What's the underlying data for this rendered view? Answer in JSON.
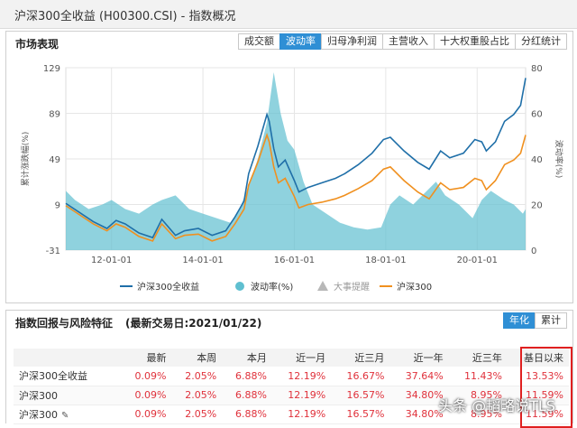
{
  "page": {
    "title": "沪深300全收益 (H00300.CSI) - 指数概况"
  },
  "market": {
    "title": "市场表现",
    "tabs": [
      "成交额",
      "波动率",
      "归母净利润",
      "主营收入",
      "十大权重股占比",
      "分红统计"
    ],
    "active_tab": 1
  },
  "chart_data": {
    "type": "line",
    "xlabel": "",
    "ylabel": "累计涨跌幅(%)",
    "y2label": "波动率(%)",
    "ylim": [
      -31,
      129
    ],
    "yticks": [
      -31,
      9,
      49,
      89,
      129
    ],
    "y2lim": [
      0,
      80
    ],
    "y2ticks": [
      0,
      20,
      40,
      60,
      80
    ],
    "xlim": [
      2011.0,
      2021.06
    ],
    "xticks": [
      {
        "value": 2012.0,
        "label": "12-01-01"
      },
      {
        "value": 2014.0,
        "label": "14-01-01"
      },
      {
        "value": 2016.0,
        "label": "16-01-01"
      },
      {
        "value": 2018.0,
        "label": "18-01-01"
      },
      {
        "value": 2020.0,
        "label": "20-01-01"
      }
    ],
    "grid": true,
    "legend": "bottom",
    "series": [
      {
        "name": "沪深300全收益",
        "kind": "line",
        "axis": "left",
        "color": "#1f6fa8",
        "x": [
          2011.0,
          2011.3,
          2011.6,
          2011.9,
          2012.1,
          2012.3,
          2012.6,
          2012.9,
          2013.1,
          2013.4,
          2013.6,
          2013.9,
          2014.2,
          2014.5,
          2014.7,
          2014.9,
          2015.0,
          2015.2,
          2015.4,
          2015.45,
          2015.55,
          2015.65,
          2015.8,
          2016.0,
          2016.1,
          2016.3,
          2016.6,
          2016.9,
          2017.1,
          2017.4,
          2017.7,
          2017.95,
          2018.1,
          2018.4,
          2018.7,
          2018.95,
          2019.2,
          2019.4,
          2019.7,
          2019.95,
          2020.1,
          2020.2,
          2020.4,
          2020.6,
          2020.8,
          2020.95,
          2021.06
        ],
        "y": [
          10,
          2,
          -6,
          -12,
          -5,
          -8,
          -16,
          -20,
          -4,
          -18,
          -14,
          -12,
          -18,
          -14,
          -2,
          12,
          36,
          60,
          88,
          82,
          58,
          42,
          48,
          30,
          20,
          24,
          28,
          32,
          36,
          44,
          54,
          66,
          68,
          56,
          46,
          40,
          56,
          50,
          54,
          66,
          64,
          56,
          64,
          82,
          88,
          96,
          120
        ]
      },
      {
        "name": "波动率(%)",
        "kind": "area",
        "axis": "right",
        "color": "#5fbfd0",
        "x": [
          2011.0,
          2011.2,
          2011.5,
          2011.8,
          2012.0,
          2012.3,
          2012.6,
          2012.9,
          2013.1,
          2013.4,
          2013.7,
          2014.0,
          2014.3,
          2014.6,
          2014.8,
          2015.0,
          2015.2,
          2015.4,
          2015.55,
          2015.7,
          2015.85,
          2016.0,
          2016.2,
          2016.4,
          2016.7,
          2017.0,
          2017.3,
          2017.6,
          2017.9,
          2018.1,
          2018.3,
          2018.6,
          2018.9,
          2019.1,
          2019.3,
          2019.6,
          2019.9,
          2020.1,
          2020.3,
          2020.6,
          2020.8,
          2021.0,
          2021.06
        ],
        "y": [
          26,
          22,
          18,
          20,
          22,
          18,
          16,
          20,
          22,
          24,
          18,
          16,
          14,
          12,
          18,
          28,
          40,
          56,
          78,
          60,
          48,
          44,
          30,
          20,
          16,
          12,
          10,
          9,
          10,
          20,
          24,
          20,
          26,
          30,
          24,
          20,
          14,
          22,
          26,
          22,
          20,
          16,
          18
        ]
      },
      {
        "name": "大事提醒",
        "kind": "marker",
        "color": "#b8b8b8",
        "x": [],
        "y": []
      },
      {
        "name": "沪深300",
        "kind": "line",
        "axis": "left",
        "color": "#f0901f",
        "x": [
          2011.0,
          2011.3,
          2011.6,
          2011.9,
          2012.1,
          2012.3,
          2012.6,
          2012.9,
          2013.1,
          2013.4,
          2013.6,
          2013.9,
          2014.2,
          2014.5,
          2014.7,
          2014.9,
          2015.0,
          2015.2,
          2015.4,
          2015.45,
          2015.55,
          2015.65,
          2015.8,
          2016.0,
          2016.1,
          2016.3,
          2016.6,
          2016.9,
          2017.1,
          2017.4,
          2017.7,
          2017.95,
          2018.1,
          2018.4,
          2018.7,
          2018.95,
          2019.2,
          2019.4,
          2019.7,
          2019.95,
          2020.1,
          2020.2,
          2020.4,
          2020.6,
          2020.8,
          2020.95,
          2021.06
        ],
        "y": [
          8,
          0,
          -8,
          -14,
          -8,
          -11,
          -19,
          -23,
          -8,
          -21,
          -18,
          -17,
          -23,
          -19,
          -8,
          5,
          26,
          46,
          70,
          64,
          42,
          28,
          32,
          16,
          6,
          9,
          11,
          14,
          17,
          23,
          30,
          40,
          42,
          30,
          20,
          14,
          28,
          22,
          24,
          32,
          30,
          22,
          30,
          44,
          48,
          54,
          70
        ]
      }
    ]
  },
  "returns": {
    "title": "指数回报与风险特征",
    "date": "(最新交易日:2021/01/22)",
    "tabs": [
      "年化",
      "累计"
    ],
    "active_tab": 0,
    "columns": [
      "",
      "最新",
      "本周",
      "本月",
      "近一月",
      "近三月",
      "近一年",
      "近三年",
      "基日以来"
    ],
    "rows": [
      {
        "name": "沪深300全收益",
        "values": [
          "0.09%",
          "2.05%",
          "6.88%",
          "12.19%",
          "16.67%",
          "37.64%",
          "11.43%",
          "13.53%"
        ]
      },
      {
        "name": "沪深300",
        "values": [
          "0.09%",
          "2.05%",
          "6.88%",
          "12.19%",
          "16.57%",
          "34.80%",
          "8.95%",
          "11.59%"
        ]
      },
      {
        "name": "沪深300",
        "values": [
          "0.09%",
          "2.05%",
          "6.88%",
          "12.19%",
          "16.57%",
          "34.80%",
          "8.95%",
          "11.59%"
        ]
      }
    ]
  },
  "watermark": "头条 @韬略说TLS"
}
